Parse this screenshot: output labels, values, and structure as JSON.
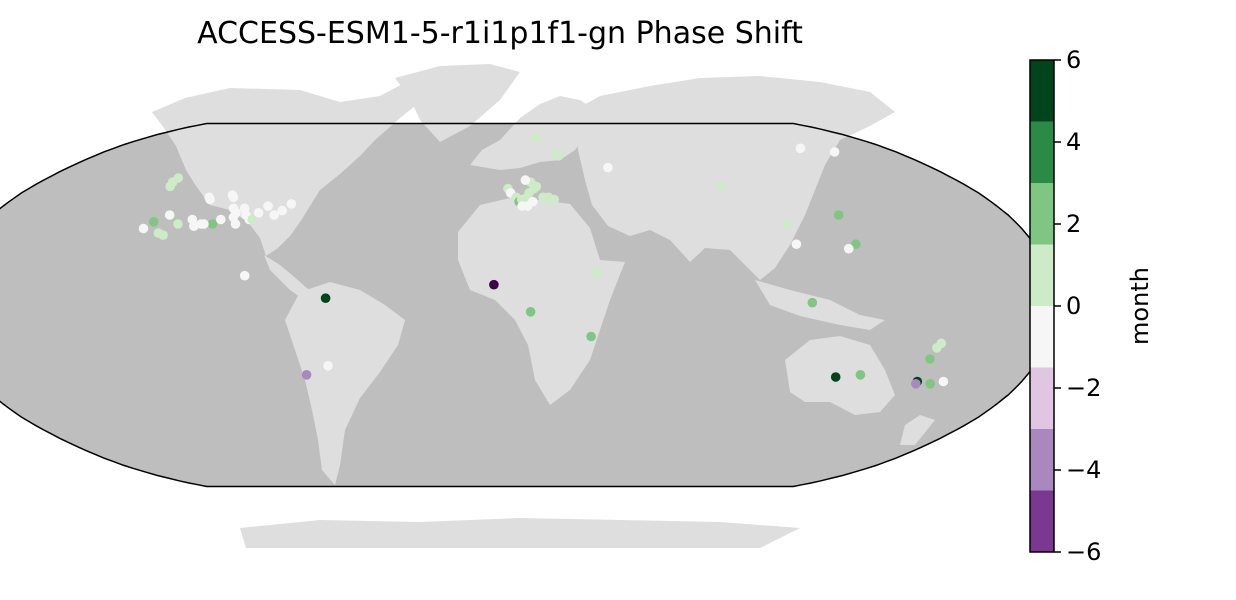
{
  "title": "ACCESS-ESM1-5-r1i1p1f1-gn Phase Shift",
  "projection": "Robinson",
  "colors": {
    "ocean": "#bebebe",
    "land": "#dedede",
    "border": "#000000"
  },
  "colorbar": {
    "label": "month",
    "ticks": [
      "6",
      "4",
      "2",
      "0",
      "−2",
      "−4",
      "−6"
    ],
    "tick_values": [
      6,
      4,
      2,
      0,
      -2,
      -4,
      -6
    ],
    "range": [
      -6,
      6
    ],
    "bins": [
      {
        "from": 4.5,
        "to": 6,
        "color": "#00441b"
      },
      {
        "from": 3,
        "to": 4.5,
        "color": "#2b8a45"
      },
      {
        "from": 1.5,
        "to": 3,
        "color": "#80c683"
      },
      {
        "from": 0,
        "to": 1.5,
        "color": "#cdebc6"
      },
      {
        "from": -1.5,
        "to": 0,
        "color": "#f6f6f6"
      },
      {
        "from": -3,
        "to": -1.5,
        "color": "#e0c6e2"
      },
      {
        "from": -4.5,
        "to": -3,
        "color": "#a988bf"
      },
      {
        "from": -6,
        "to": -4.5,
        "color": "#7b3891"
      },
      {
        "from": -7.5,
        "to": -6,
        "color": "#40004b"
      }
    ]
  },
  "sites": [
    {
      "lon": -128,
      "lat": 57,
      "v": 1
    },
    {
      "lon": -128,
      "lat": 55,
      "v": 1
    },
    {
      "lon": -127,
      "lat": 53,
      "v": 1
    },
    {
      "lon": -108,
      "lat": 48,
      "v": 0
    },
    {
      "lon": -107,
      "lat": 47,
      "v": 0
    },
    {
      "lon": -100,
      "lat": 49,
      "v": 0
    },
    {
      "lon": -99,
      "lat": 48,
      "v": 0
    },
    {
      "lon": -96,
      "lat": 43,
      "v": 0
    },
    {
      "lon": -94,
      "lat": 41,
      "v": 0
    },
    {
      "lon": -92,
      "lat": 43,
      "v": 0
    },
    {
      "lon": -90,
      "lat": 40,
      "v": 0
    },
    {
      "lon": -88,
      "lat": 38,
      "v": 0
    },
    {
      "lon": -86,
      "lat": 41,
      "v": 0
    },
    {
      "lon": -84,
      "lat": 44,
      "v": 0
    },
    {
      "lon": -80,
      "lat": 40,
      "v": 0
    },
    {
      "lon": -78,
      "lat": 42,
      "v": 0
    },
    {
      "lon": -76,
      "lat": 45,
      "v": 0
    },
    {
      "lon": -94,
      "lat": 39,
      "v": 0
    },
    {
      "lon": -117,
      "lat": 40,
      "v": 0
    },
    {
      "lon": -108,
      "lat": 38,
      "v": 0
    },
    {
      "lon": -104,
      "lat": 36,
      "v": 0
    },
    {
      "lon": -106,
      "lat": 35,
      "v": 0
    },
    {
      "lon": -121,
      "lat": 37,
      "v": 2
    },
    {
      "lon": -123,
      "lat": 34,
      "v": -1
    },
    {
      "lon": -112,
      "lat": 36,
      "v": 1
    },
    {
      "lon": -100,
      "lat": 36,
      "v": 3
    },
    {
      "lon": -103,
      "lat": 36,
      "v": -1
    },
    {
      "lon": -98,
      "lat": 38,
      "v": -1
    },
    {
      "lon": -117,
      "lat": 32,
      "v": 1
    },
    {
      "lon": -115,
      "lat": 31,
      "v": 1
    },
    {
      "lon": -92,
      "lat": 36,
      "v": 0
    },
    {
      "lon": -87,
      "lat": 38,
      "v": 1
    },
    {
      "lon": -84,
      "lat": 13,
      "v": -1
    },
    {
      "lon": -57,
      "lat": 3,
      "v": 6
    },
    {
      "lon": -58,
      "lat": -27,
      "v": 0
    },
    {
      "lon": -66,
      "lat": -31,
      "v": -3
    },
    {
      "lon": -2,
      "lat": 9,
      "v": -6
    },
    {
      "lon": 10,
      "lat": -3,
      "v": 2
    },
    {
      "lon": 30,
      "lat": -14,
      "v": 2
    },
    {
      "lon": 32,
      "lat": 14,
      "v": 1
    },
    {
      "lon": 18,
      "lat": 78,
      "v": 1
    },
    {
      "lon": 25,
      "lat": 69,
      "v": 1
    },
    {
      "lon": 26,
      "lat": 68,
      "v": 1
    },
    {
      "lon": 45,
      "lat": 62,
      "v": 0
    },
    {
      "lon": 85,
      "lat": 53,
      "v": 1
    },
    {
      "lon": 3,
      "lat": 52,
      "v": 1
    },
    {
      "lon": 4,
      "lat": 50,
      "v": 0
    },
    {
      "lon": 6,
      "lat": 48,
      "v": 1
    },
    {
      "lon": 7,
      "lat": 46,
      "v": 3
    },
    {
      "lon": 8,
      "lat": 47,
      "v": 1
    },
    {
      "lon": 10,
      "lat": 48,
      "v": 1
    },
    {
      "lon": 11,
      "lat": 50,
      "v": 1
    },
    {
      "lon": 13,
      "lat": 52,
      "v": 1
    },
    {
      "lon": 14,
      "lat": 53,
      "v": 1
    },
    {
      "lon": 16,
      "lat": 48,
      "v": 1
    },
    {
      "lon": 12,
      "lat": 46,
      "v": 0
    },
    {
      "lon": 10,
      "lat": 44,
      "v": 0
    },
    {
      "lon": 8,
      "lat": 44,
      "v": 0
    },
    {
      "lon": 12,
      "lat": 55,
      "v": 1
    },
    {
      "lon": 10,
      "lat": 56,
      "v": -1
    },
    {
      "lon": 18,
      "lat": 48,
      "v": 1
    },
    {
      "lon": 20,
      "lat": 47,
      "v": 1
    },
    {
      "lon": 140,
      "lat": 72,
      "v": 0
    },
    {
      "lon": 152,
      "lat": 70,
      "v": 0
    },
    {
      "lon": 100,
      "lat": 36,
      "v": 1
    },
    {
      "lon": 120,
      "lat": 40,
      "v": 2
    },
    {
      "lon": 100,
      "lat": 27,
      "v": 0
    },
    {
      "lon": 120,
      "lat": 27,
      "v": 3
    },
    {
      "lon": 117,
      "lat": 25,
      "v": -1
    },
    {
      "lon": 102,
      "lat": 1,
      "v": 2
    },
    {
      "lon": 146,
      "lat": -17,
      "v": 1
    },
    {
      "lon": 145,
      "lat": -19,
      "v": 1
    },
    {
      "lon": 144,
      "lat": -24,
      "v": 2
    },
    {
      "lon": 115,
      "lat": -32,
      "v": 6
    },
    {
      "lon": 123,
      "lat": -31,
      "v": 2
    },
    {
      "lon": 144,
      "lat": -34,
      "v": 6
    },
    {
      "lon": 144,
      "lat": -35,
      "v": -3
    },
    {
      "lon": 149,
      "lat": -35,
      "v": 3
    },
    {
      "lon": 153,
      "lat": -34,
      "v": -1
    }
  ]
}
